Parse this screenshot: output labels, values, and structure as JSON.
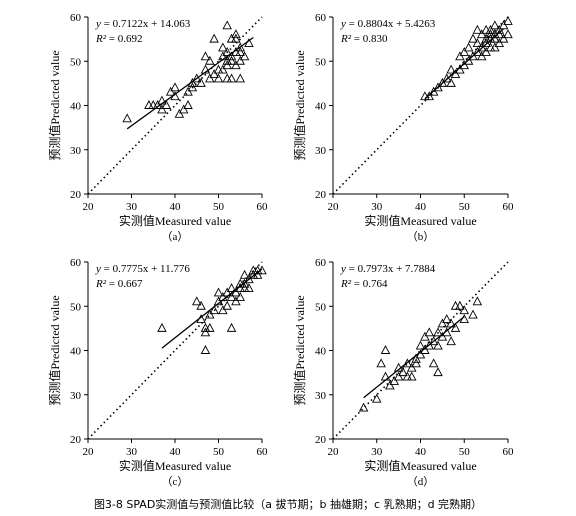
{
  "caption": "图3-8 SPAD实测值与预测值比较（a 拔节期；b 抽雄期；c 乳熟期；d 完熟期）",
  "colors": {
    "axis": "#000000",
    "marker": "#000000",
    "fit": "#000000",
    "reference": "#000000"
  },
  "chart_data": [
    {
      "type": "scatter",
      "panel_label": "（a）",
      "xlabel": "实测值Measured value",
      "ylabel": "预测值Predicted value",
      "xlim": [
        20,
        60
      ],
      "ylim": [
        20,
        60
      ],
      "xticks": [
        20,
        30,
        40,
        50,
        60
      ],
      "yticks": [
        20,
        30,
        40,
        50,
        60
      ],
      "equation_lhs": "y",
      "equation_rhs": " = 0.7122x + 14.063",
      "r2_lhs": "R²",
      "r2_rhs": " = 0.692",
      "fit": {
        "slope": 0.7122,
        "intercept": 14.063,
        "x_range": [
          29,
          58
        ]
      },
      "reference_line": "1:1",
      "marker": "open-triangle",
      "points": [
        [
          29,
          37
        ],
        [
          34,
          40
        ],
        [
          35,
          40
        ],
        [
          36,
          40
        ],
        [
          37,
          39
        ],
        [
          37,
          41
        ],
        [
          38,
          40
        ],
        [
          39,
          43
        ],
        [
          40,
          44
        ],
        [
          40,
          42
        ],
        [
          41,
          38
        ],
        [
          42,
          39
        ],
        [
          43,
          40
        ],
        [
          43,
          43
        ],
        [
          44,
          45
        ],
        [
          44,
          44
        ],
        [
          45,
          46
        ],
        [
          46,
          45
        ],
        [
          47,
          48
        ],
        [
          47,
          51
        ],
        [
          48,
          50
        ],
        [
          48,
          46
        ],
        [
          49,
          55
        ],
        [
          49,
          47
        ],
        [
          50,
          48
        ],
        [
          50,
          46
        ],
        [
          51,
          51
        ],
        [
          51,
          48
        ],
        [
          52,
          49
        ],
        [
          52,
          50
        ],
        [
          52,
          46
        ],
        [
          52,
          58
        ],
        [
          53,
          51
        ],
        [
          53,
          55
        ],
        [
          53,
          46
        ],
        [
          53,
          50
        ],
        [
          54,
          52
        ],
        [
          54,
          55
        ],
        [
          54,
          56
        ],
        [
          54,
          49
        ],
        [
          55,
          50
        ],
        [
          55,
          53
        ],
        [
          55,
          46
        ],
        [
          55,
          52
        ],
        [
          56,
          51
        ],
        [
          57,
          54
        ],
        [
          52,
          52
        ],
        [
          51,
          53
        ]
      ]
    },
    {
      "type": "scatter",
      "panel_label": "（b）",
      "xlabel": "实测值Measured value",
      "ylabel": "预测值Predicted value",
      "xlim": [
        20,
        60
      ],
      "ylim": [
        20,
        60
      ],
      "xticks": [
        20,
        30,
        40,
        50,
        60
      ],
      "yticks": [
        20,
        30,
        40,
        50,
        60
      ],
      "equation_lhs": "y",
      "equation_rhs": " = 0.8804x + 5.4263",
      "r2_lhs": "R²",
      "r2_rhs": " = 0.830",
      "fit": {
        "slope": 0.8804,
        "intercept": 5.4263,
        "x_range": [
          41,
          59
        ]
      },
      "reference_line": "1:1",
      "marker": "open-triangle",
      "points": [
        [
          41,
          42
        ],
        [
          42,
          42
        ],
        [
          43,
          43
        ],
        [
          44,
          44
        ],
        [
          45,
          45
        ],
        [
          46,
          46
        ],
        [
          47,
          45
        ],
        [
          47,
          48
        ],
        [
          48,
          47
        ],
        [
          49,
          48
        ],
        [
          49,
          51
        ],
        [
          50,
          49
        ],
        [
          50,
          52
        ],
        [
          51,
          50
        ],
        [
          51,
          53
        ],
        [
          52,
          51
        ],
        [
          52,
          55
        ],
        [
          53,
          52
        ],
        [
          53,
          54
        ],
        [
          53,
          57
        ],
        [
          54,
          53
        ],
        [
          54,
          56
        ],
        [
          54,
          51
        ],
        [
          55,
          54
        ],
        [
          55,
          55
        ],
        [
          55,
          52
        ],
        [
          56,
          55
        ],
        [
          56,
          57
        ],
        [
          56,
          53
        ],
        [
          57,
          56
        ],
        [
          57,
          58
        ],
        [
          57,
          55
        ],
        [
          58,
          57
        ],
        [
          58,
          56
        ],
        [
          58,
          54
        ],
        [
          59,
          58
        ],
        [
          59,
          55
        ],
        [
          60,
          59
        ],
        [
          60,
          56
        ],
        [
          57,
          53
        ],
        [
          55,
          57
        ],
        [
          56,
          56
        ]
      ]
    },
    {
      "type": "scatter",
      "panel_label": "（c）",
      "xlabel": "实测值Measured value",
      "ylabel": "预测值Predicted value",
      "xlim": [
        20,
        60
      ],
      "ylim": [
        20,
        60
      ],
      "xticks": [
        20,
        30,
        40,
        50,
        60
      ],
      "yticks": [
        20,
        30,
        40,
        50,
        60
      ],
      "equation_lhs": "y",
      "equation_rhs": " = 0.7775x + 11.776",
      "r2_lhs": "R²",
      "r2_rhs": " = 0.667",
      "fit": {
        "slope": 0.7775,
        "intercept": 11.776,
        "x_range": [
          37,
          60
        ]
      },
      "reference_line": "1:1",
      "marker": "open-triangle",
      "points": [
        [
          37,
          45
        ],
        [
          45,
          51
        ],
        [
          46,
          50
        ],
        [
          46,
          47
        ],
        [
          47,
          44
        ],
        [
          47,
          45
        ],
        [
          47,
          40
        ],
        [
          48,
          45
        ],
        [
          48,
          48
        ],
        [
          49,
          49
        ],
        [
          50,
          53
        ],
        [
          50,
          51
        ],
        [
          51,
          52
        ],
        [
          51,
          49
        ],
        [
          52,
          50
        ],
        [
          52,
          53
        ],
        [
          53,
          54
        ],
        [
          53,
          45
        ],
        [
          53,
          52
        ],
        [
          54,
          51
        ],
        [
          54,
          53
        ],
        [
          55,
          54
        ],
        [
          55,
          52
        ],
        [
          55,
          55
        ],
        [
          56,
          54
        ],
        [
          56,
          55
        ],
        [
          56,
          57
        ],
        [
          57,
          56
        ],
        [
          57,
          54
        ],
        [
          58,
          58
        ],
        [
          58,
          57
        ],
        [
          59,
          58
        ],
        [
          60,
          58
        ],
        [
          59,
          57
        ]
      ]
    },
    {
      "type": "scatter",
      "panel_label": "（d）",
      "xlabel": "实测值Measured value",
      "ylabel": "预测值Predicted value",
      "xlim": [
        20,
        60
      ],
      "ylim": [
        20,
        60
      ],
      "xticks": [
        20,
        30,
        40,
        50,
        60
      ],
      "yticks": [
        20,
        30,
        40,
        50,
        60
      ],
      "equation_lhs": "y",
      "equation_rhs": " = 0.7973x + 7.7884",
      "r2_lhs": "R²",
      "r2_rhs": " = 0.764",
      "fit": {
        "slope": 0.7973,
        "intercept": 7.7884,
        "x_range": [
          27,
          50
        ]
      },
      "reference_line": "1:1",
      "marker": "open-triangle",
      "points": [
        [
          27,
          27
        ],
        [
          30,
          29
        ],
        [
          31,
          37
        ],
        [
          32,
          40
        ],
        [
          32,
          34
        ],
        [
          33,
          32
        ],
        [
          34,
          33
        ],
        [
          35,
          34
        ],
        [
          35,
          36
        ],
        [
          36,
          35
        ],
        [
          37,
          34
        ],
        [
          37,
          37
        ],
        [
          38,
          36
        ],
        [
          38,
          34
        ],
        [
          39,
          37
        ],
        [
          40,
          41
        ],
        [
          40,
          39
        ],
        [
          41,
          43
        ],
        [
          41,
          40
        ],
        [
          42,
          41
        ],
        [
          42,
          44
        ],
        [
          43,
          42
        ],
        [
          43,
          37
        ],
        [
          44,
          35
        ],
        [
          44,
          44
        ],
        [
          44,
          41
        ],
        [
          45,
          43
        ],
        [
          45,
          46
        ],
        [
          46,
          44
        ],
        [
          46,
          47
        ],
        [
          47,
          46
        ],
        [
          47,
          42
        ],
        [
          48,
          50
        ],
        [
          48,
          45
        ],
        [
          49,
          50
        ],
        [
          50,
          47
        ],
        [
          50,
          49
        ],
        [
          53,
          51
        ],
        [
          52,
          48
        ],
        [
          39,
          38
        ]
      ]
    }
  ]
}
